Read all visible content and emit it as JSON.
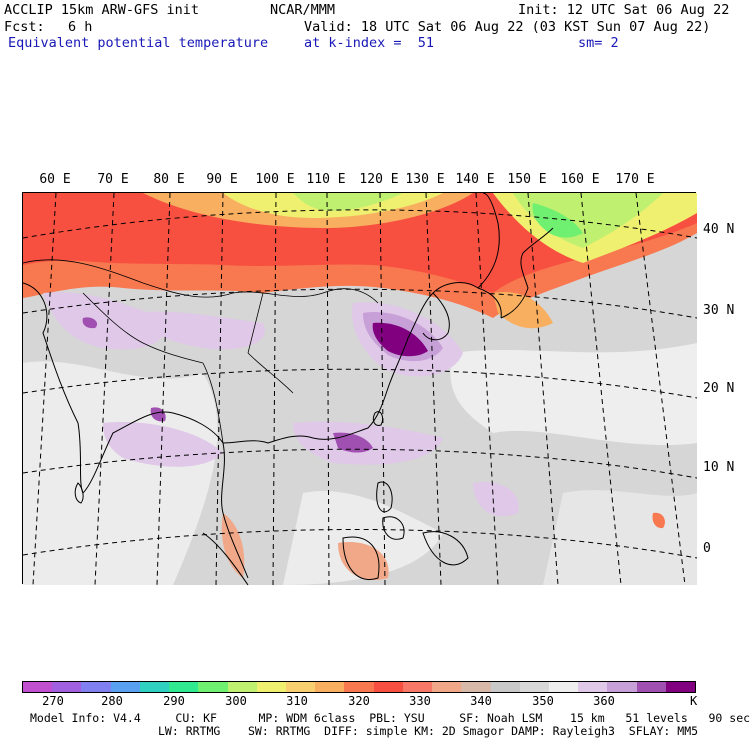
{
  "header": {
    "model": "ACCLIP 15km ARW-GFS init",
    "center": "NCAR/MMM",
    "init": "Init: 12 UTC Sat 06 Aug 22",
    "fcst_label": "Fcst:",
    "fcst_value": "6 h",
    "valid": "Valid: 18 UTC Sat 06 Aug 22 (03 KST Sun 07 Aug 22)",
    "field": "Equivalent potential temperature",
    "level": "at k-index =  51",
    "smoothing": "sm= 2"
  },
  "map": {
    "lon_labels": [
      "60 E",
      "70 E",
      "80 E",
      "90 E",
      "100 E",
      "110 E",
      "120 E",
      "130 E",
      "140 E",
      "150 E",
      "160 E",
      "170 E"
    ],
    "lat_labels": [
      "40 N",
      "30 N",
      "20 N",
      "10 N",
      "0"
    ]
  },
  "colorbar": {
    "unit": "K",
    "labels": [
      "270",
      "280",
      "290",
      "300",
      "310",
      "320",
      "330",
      "340",
      "350",
      "360"
    ],
    "colors": [
      "#c050d0",
      "#a060e0",
      "#8080f0",
      "#5aa0f0",
      "#30d0c0",
      "#30e890",
      "#70f070",
      "#c0f070",
      "#f0f070",
      "#f8d070",
      "#f8b060",
      "#f87850",
      "#f85040",
      "#f87868",
      "#f0a888",
      "#d8b8a8",
      "#c8c8c8",
      "#d8d8d8",
      "#eeeeee",
      "#e0c8e8",
      "#c8a0d8",
      "#a050b0",
      "#800080"
    ]
  },
  "footer": {
    "line1": "Model Info: V4.4     CU: KF      MP: WDM 6class  PBL: YSU     SF: Noah LSM    15 km   51 levels   90 sec",
    "line2": "LW: RRTMG    SW: RRTMG  DIFF: simple KM: 2D Smagor DAMP: Rayleigh3  SFLAY: MM5"
  }
}
